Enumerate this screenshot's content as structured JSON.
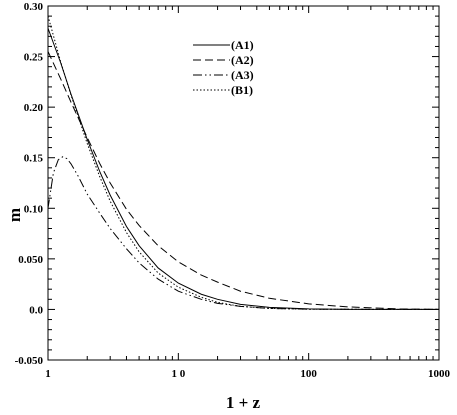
{
  "chart_data": {
    "type": "line",
    "xlabel": "1 + z",
    "ylabel": "m",
    "xscale": "log",
    "xlim": [
      1,
      1000
    ],
    "ylim": [
      -0.05,
      0.3
    ],
    "grid": false,
    "legend": "top-center",
    "x_ticks": [
      1,
      10,
      100,
      1000
    ],
    "x_tick_labels": [
      "1",
      "1 0",
      "100",
      "1000"
    ],
    "y_ticks": [
      -0.05,
      0,
      0.05,
      0.1,
      0.15,
      0.2,
      0.25,
      0.3
    ],
    "y_tick_labels": [
      "-0.050",
      "0.0",
      "0.050",
      "0.10",
      "0.15",
      "0.20",
      "0.25",
      "0.30"
    ],
    "series": [
      {
        "name": "(A1)",
        "style": "solid",
        "x": [
          1,
          1.25,
          1.5,
          2,
          2.5,
          3,
          4,
          5,
          7,
          10,
          15,
          20,
          30,
          50,
          100,
          200,
          1000
        ],
        "y": [
          0.278,
          0.244,
          0.213,
          0.168,
          0.136,
          0.113,
          0.082,
          0.063,
          0.041,
          0.026,
          0.015,
          0.01,
          0.005,
          0.002,
          0.0005,
          0.0001,
          0
        ]
      },
      {
        "name": "(A2)",
        "style": "dashed",
        "x": [
          1,
          1.25,
          1.5,
          2,
          2.5,
          3,
          4,
          5,
          7,
          10,
          15,
          20,
          30,
          50,
          100,
          200,
          500,
          1000
        ],
        "y": [
          0.255,
          0.228,
          0.205,
          0.17,
          0.144,
          0.125,
          0.099,
          0.083,
          0.063,
          0.047,
          0.034,
          0.027,
          0.018,
          0.011,
          0.0055,
          0.0025,
          0.0005,
          0
        ]
      },
      {
        "name": "(A3)",
        "style": "dash-dot-dot",
        "x": [
          1,
          1.1,
          1.2,
          1.3,
          1.4,
          1.5,
          1.7,
          2,
          2.5,
          3,
          4,
          5,
          7,
          10,
          15,
          20,
          30,
          50,
          100,
          1000
        ],
        "y": [
          0.1,
          0.135,
          0.148,
          0.151,
          0.149,
          0.144,
          0.132,
          0.114,
          0.095,
          0.08,
          0.06,
          0.046,
          0.03,
          0.018,
          0.01,
          0.006,
          0.003,
          0.001,
          0.0002,
          0
        ]
      },
      {
        "name": "(B1)",
        "style": "dotted",
        "x": [
          1,
          1.25,
          1.5,
          2,
          2.5,
          3,
          4,
          5,
          7,
          10,
          15,
          20,
          30,
          50,
          100,
          1000
        ],
        "y": [
          0.29,
          0.245,
          0.212,
          0.164,
          0.131,
          0.107,
          0.076,
          0.057,
          0.036,
          0.022,
          0.012,
          0.007,
          0.003,
          0.001,
          0.0002,
          0
        ]
      }
    ]
  }
}
